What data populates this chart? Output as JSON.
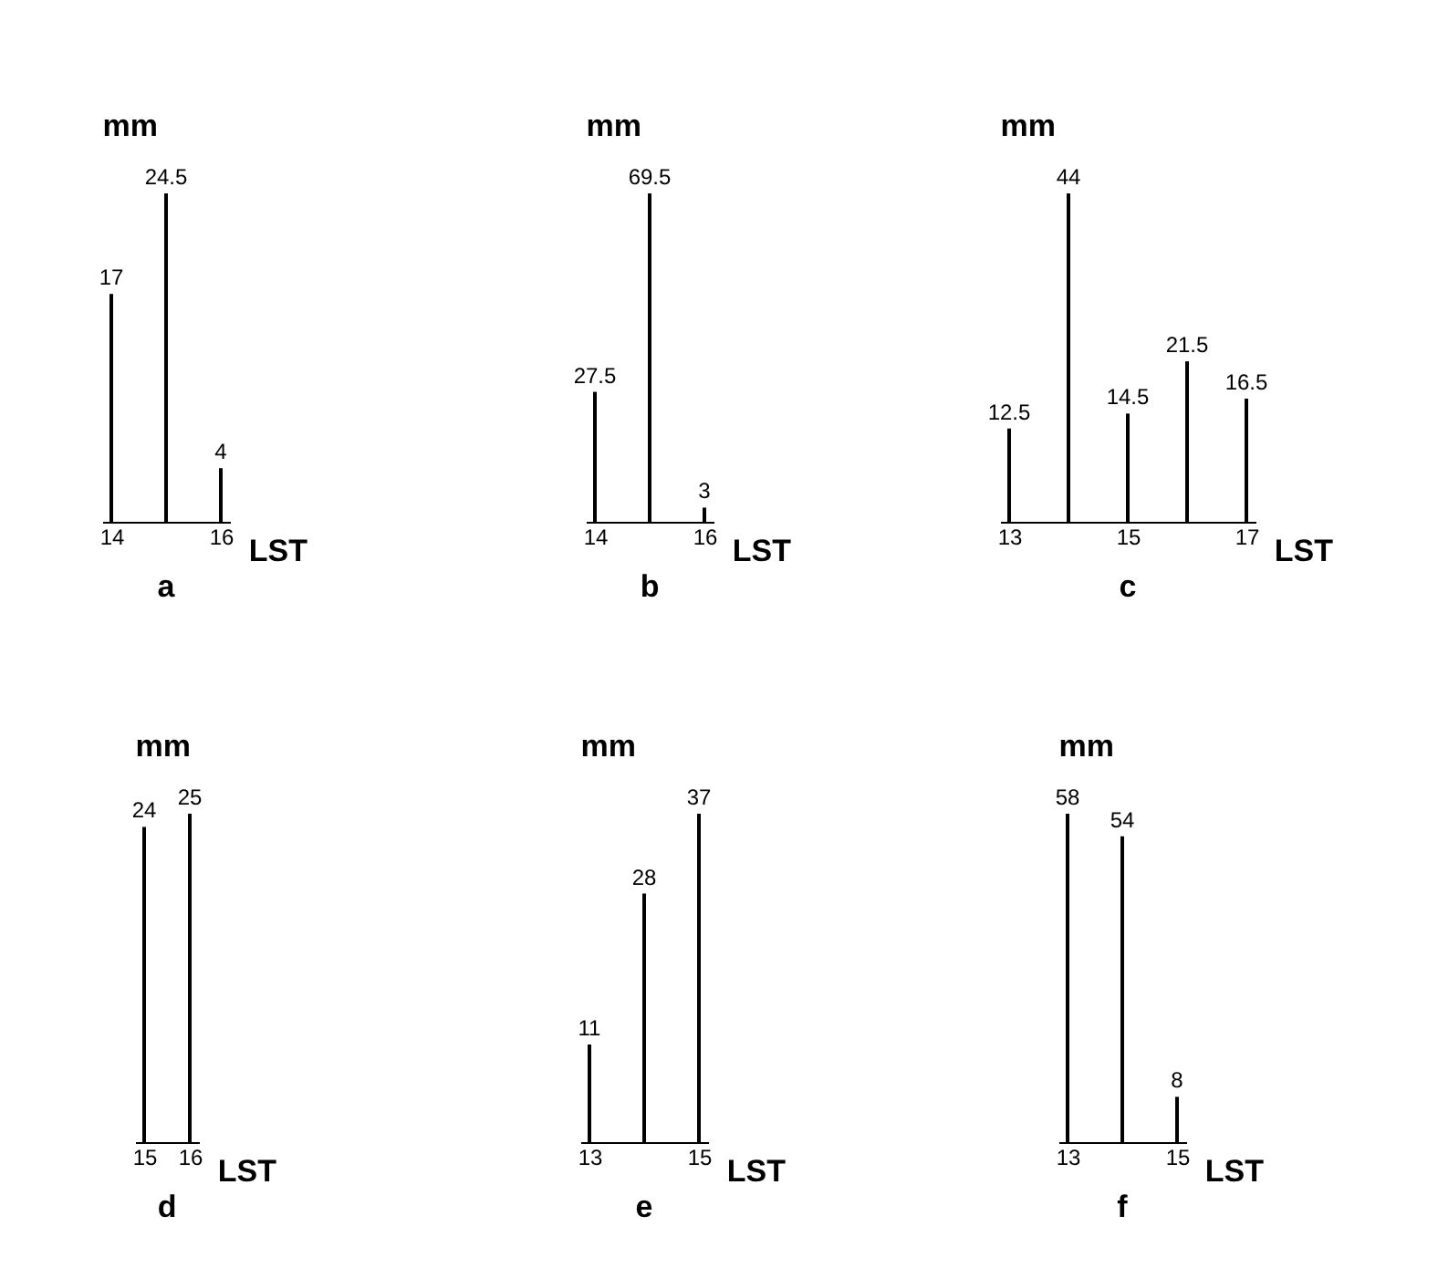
{
  "chart_data": [
    {
      "type": "bar",
      "title": "a",
      "ylabel": "mm",
      "xlabel": "LST",
      "x": [
        14,
        15,
        16
      ],
      "values": [
        17,
        24.5,
        4
      ],
      "xlim": [
        14,
        16
      ],
      "xticks": [
        14,
        16
      ],
      "data_labels": true,
      "tick_labels": "x",
      "color": "#000000"
    },
    {
      "type": "bar",
      "title": "b",
      "ylabel": "mm",
      "xlabel": "LST",
      "x": [
        14,
        15,
        16
      ],
      "values": [
        27.5,
        69.5,
        3
      ],
      "xlim": [
        14,
        16
      ],
      "xticks": [
        14,
        16
      ],
      "data_labels": true,
      "tick_labels": "x",
      "color": "#000000"
    },
    {
      "type": "bar",
      "title": "c",
      "ylabel": "mm",
      "xlabel": "LST",
      "x": [
        13,
        14,
        15,
        16,
        17
      ],
      "values": [
        12.5,
        44,
        14.5,
        21.5,
        16.5
      ],
      "xlim": [
        13,
        17
      ],
      "xticks": [
        13,
        15,
        17
      ],
      "data_labels": true,
      "tick_labels": "x",
      "color": "#000000"
    },
    {
      "type": "bar",
      "title": "d",
      "ylabel": "mm",
      "xlabel": "LST",
      "x": [
        15,
        16
      ],
      "values": [
        24,
        25
      ],
      "xlim": [
        15,
        16
      ],
      "xticks": [
        15,
        16
      ],
      "data_labels": true,
      "tick_labels": "x",
      "color": "#000000"
    },
    {
      "type": "bar",
      "title": "e",
      "ylabel": "mm",
      "xlabel": "LST",
      "x": [
        13,
        14,
        15
      ],
      "values": [
        11,
        28,
        37
      ],
      "xlim": [
        13,
        15
      ],
      "xticks": [
        13,
        15
      ],
      "data_labels": true,
      "tick_labels": "x",
      "color": "#000000"
    },
    {
      "type": "bar",
      "title": "f",
      "ylabel": "mm",
      "xlabel": "LST",
      "x": [
        13,
        14,
        15
      ],
      "values": [
        58,
        54,
        8
      ],
      "xlim": [
        13,
        15
      ],
      "xticks": [
        13,
        15
      ],
      "data_labels": true,
      "tick_labels": "x",
      "color": "#000000"
    }
  ]
}
